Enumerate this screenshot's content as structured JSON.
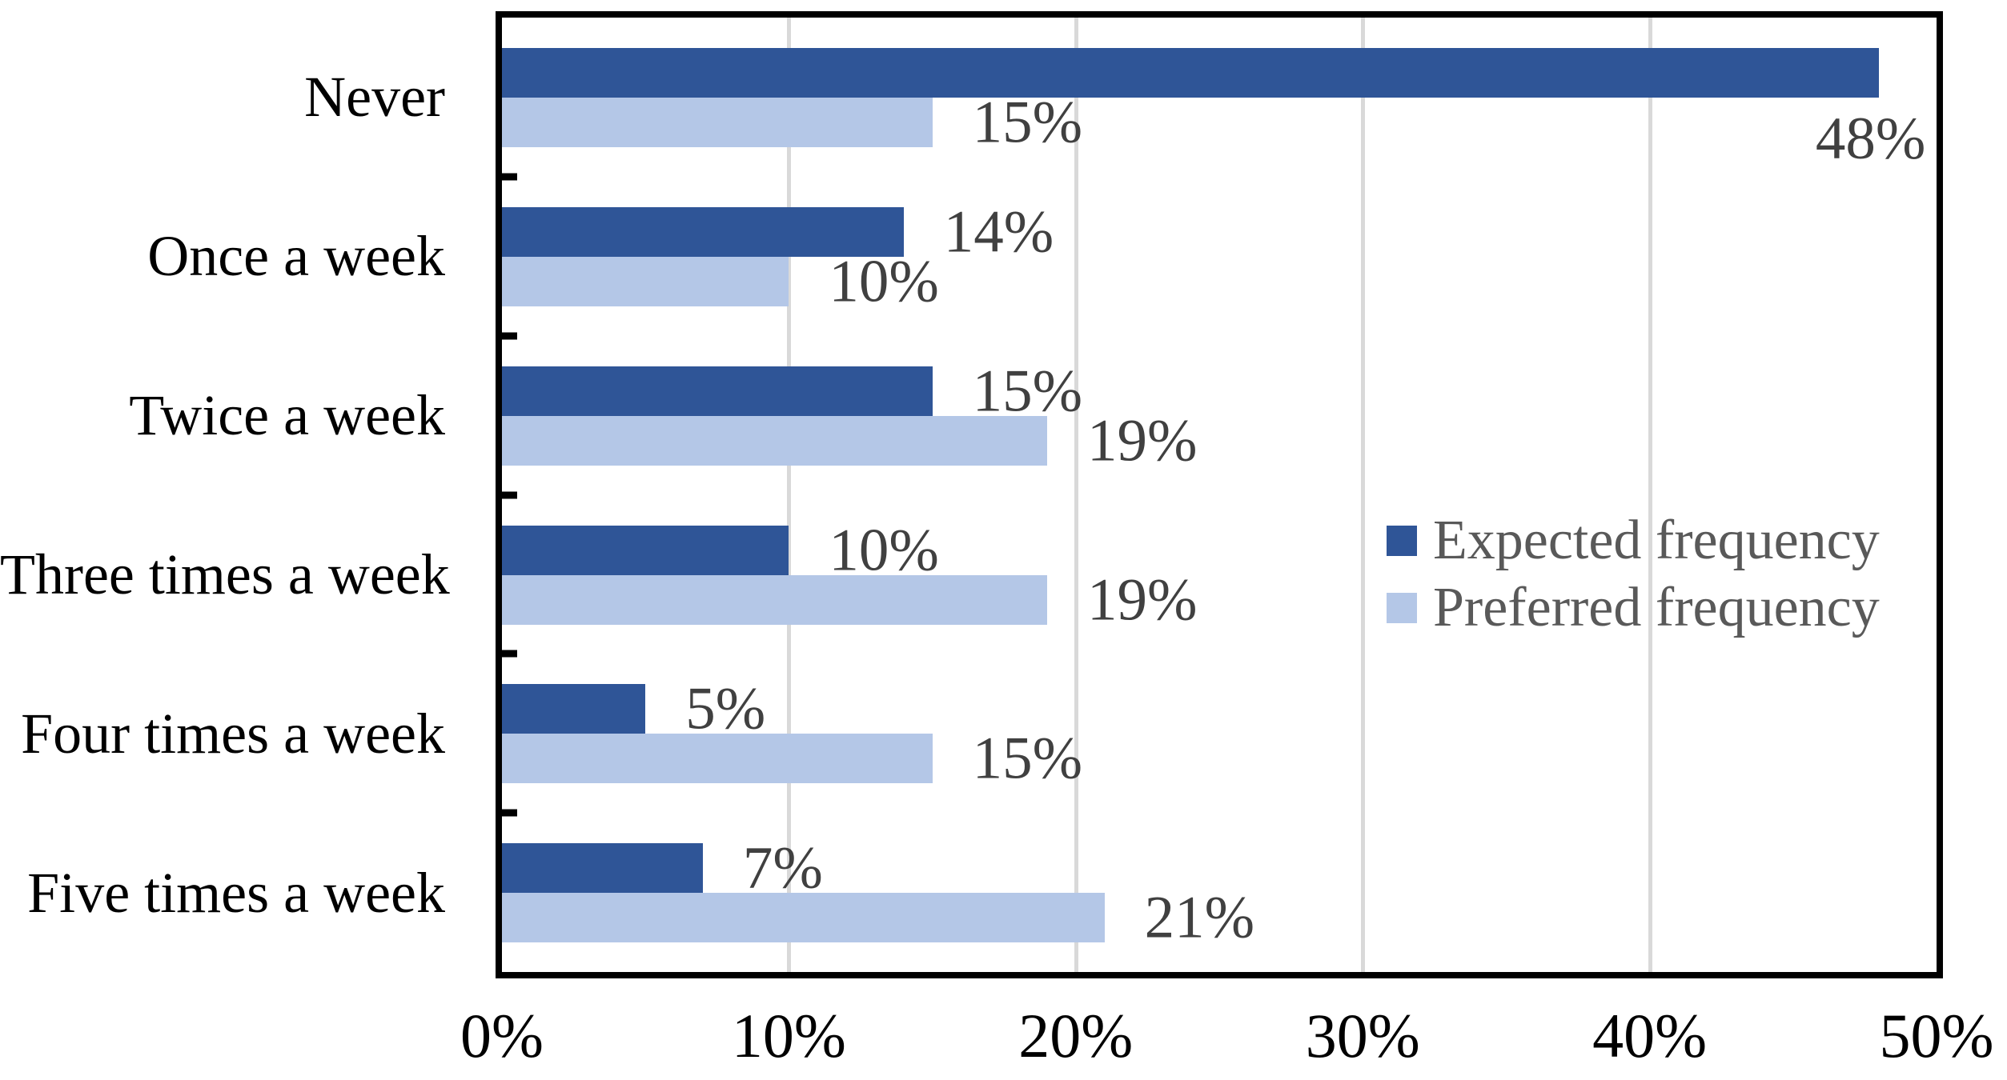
{
  "chart_data": {
    "type": "bar",
    "orientation": "horizontal",
    "title": "",
    "xlabel": "",
    "ylabel": "",
    "xlim": [
      0,
      50
    ],
    "grid": true,
    "gridline_interval_pct": 10,
    "x_ticks": [
      "0%",
      "10%",
      "20%",
      "30%",
      "40%",
      "50%"
    ],
    "categories": [
      "Never",
      "Once a week",
      "Twice a week",
      "Three times a week",
      "Four times a week",
      "Five times a week"
    ],
    "series": [
      {
        "name": "Expected frequency",
        "color": "#2F5597",
        "values": [
          48,
          14,
          15,
          10,
          5,
          7
        ],
        "labels": [
          "48%",
          "14%",
          "15%",
          "10%",
          "5%",
          "7%"
        ]
      },
      {
        "name": "Preferred frequency",
        "color": "#B4C7E7",
        "values": [
          15,
          10,
          19,
          19,
          15,
          21
        ],
        "labels": [
          "15%",
          "10%",
          "19%",
          "19%",
          "15%",
          "21%"
        ]
      }
    ],
    "legend_position": "center-right"
  },
  "colors": {
    "gridline": "#D9D9D9",
    "plot_border": "#000000",
    "axis_text": "#000000",
    "category_text": "#000000",
    "data_label_text": "#404040",
    "legend_text": "#595959",
    "background": "#FFFFFF"
  }
}
